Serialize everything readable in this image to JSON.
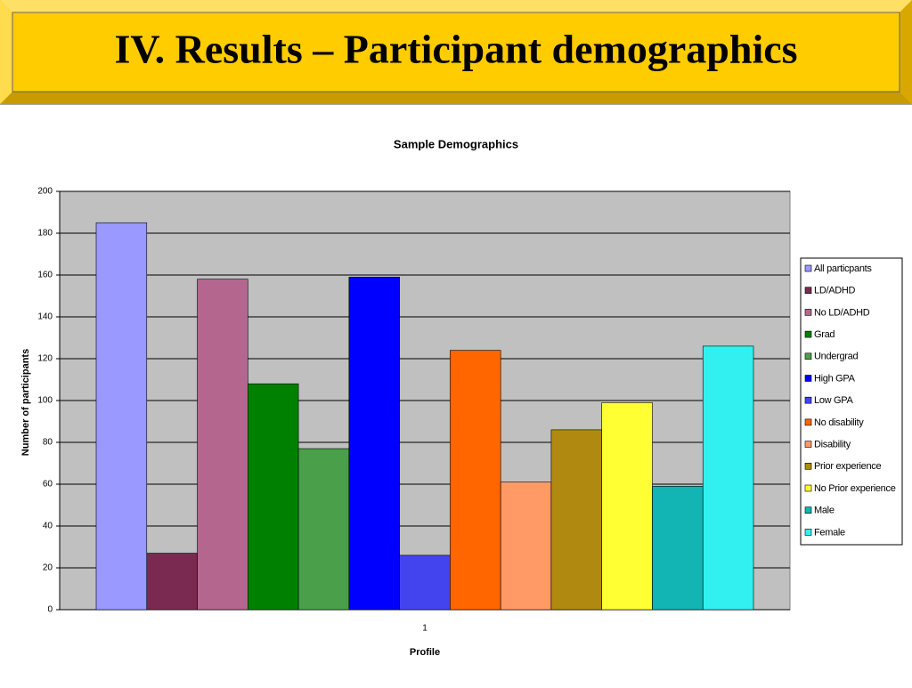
{
  "slide_title": "IV. Results – Participant demographics",
  "chart_data": {
    "type": "bar",
    "title": "Sample Demographics",
    "x_label": "Profile",
    "y_label": "Number of participants",
    "categories": [
      "1"
    ],
    "series": [
      {
        "name": "All particpants",
        "color": "#9999ff",
        "values": [
          185
        ]
      },
      {
        "name": "LD/ADHD",
        "color": "#7a2a50",
        "values": [
          27
        ]
      },
      {
        "name": "No LD/ADHD",
        "color": "#b5668e",
        "values": [
          158
        ]
      },
      {
        "name": "Grad",
        "color": "#008000",
        "values": [
          108
        ]
      },
      {
        "name": "Undergrad",
        "color": "#4aa04a",
        "values": [
          77
        ]
      },
      {
        "name": "High GPA",
        "color": "#0000ff",
        "values": [
          159
        ]
      },
      {
        "name": "Low  GPA",
        "color": "#4444ee",
        "values": [
          26
        ]
      },
      {
        "name": "No disability",
        "color": "#ff6600",
        "values": [
          124
        ]
      },
      {
        "name": "Disability",
        "color": "#ff9966",
        "values": [
          61
        ]
      },
      {
        "name": "Prior experience",
        "color": "#b08a10",
        "values": [
          86
        ]
      },
      {
        "name": "No Prior experience",
        "color": "#ffff33",
        "values": [
          99
        ]
      },
      {
        "name": "Male",
        "color": "#12b4b4",
        "values": [
          59
        ]
      },
      {
        "name": "Female",
        "color": "#33f0f0",
        "values": [
          126
        ]
      }
    ],
    "ylim": [
      0,
      200
    ],
    "yticks": [
      0,
      20,
      40,
      60,
      80,
      100,
      120,
      140,
      160,
      180,
      200
    ],
    "grid": true,
    "legend": "right",
    "plot_background": "#c0c0c0"
  }
}
